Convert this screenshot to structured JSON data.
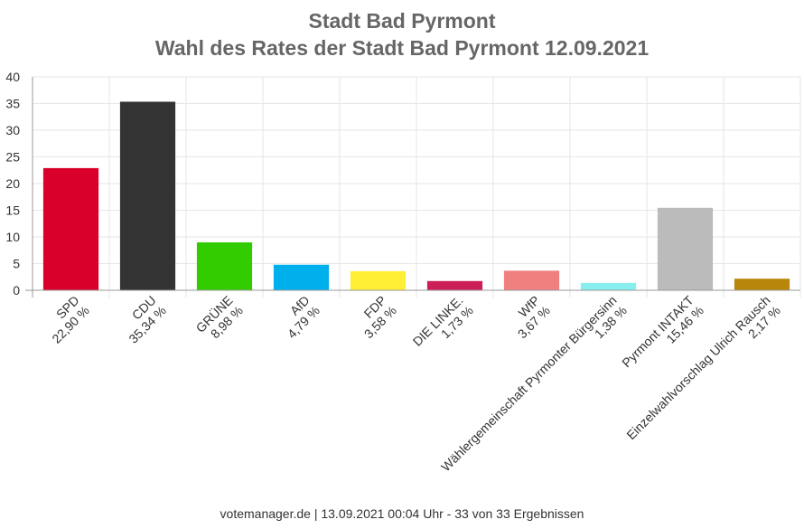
{
  "title": {
    "line1": "Stadt Bad Pyrmont",
    "line2": "Wahl des Rates der Stadt Bad Pyrmont 12.09.2021"
  },
  "footer": "votemanager.de | 13.09.2021 00:04 Uhr - 33 von 33 Ergebnissen",
  "chart_data": {
    "type": "bar",
    "title": "Wahl des Rates der Stadt Bad Pyrmont 12.09.2021",
    "ylim": [
      0,
      40
    ],
    "yticks": [
      0,
      5,
      10,
      15,
      20,
      25,
      30,
      35,
      40
    ],
    "grid": true,
    "categories": [
      "SPD",
      "CDU",
      "GRÜNE",
      "AfD",
      "FDP",
      "DIE LINKE.",
      "WfP",
      "Wählergemeinschaft Pyrmonter Bürgersinn",
      "Pyrmont INTAKT",
      "Einzelwahlvorschlag Ulrich Rausch"
    ],
    "value_labels": [
      "22,90 %",
      "35,34 %",
      "8,98 %",
      "4,79 %",
      "3,58 %",
      "1,73 %",
      "3,67 %",
      "1,38 %",
      "15,46 %",
      "2,17 %"
    ],
    "values": [
      22.9,
      35.34,
      8.98,
      4.79,
      3.58,
      1.73,
      3.67,
      1.38,
      15.46,
      2.17
    ],
    "colors": [
      "#d9002b",
      "#333333",
      "#33cc00",
      "#00b0ec",
      "#ffee33",
      "#cc1f55",
      "#f08080",
      "#88eeee",
      "#bbbbbb",
      "#b8860b"
    ]
  }
}
